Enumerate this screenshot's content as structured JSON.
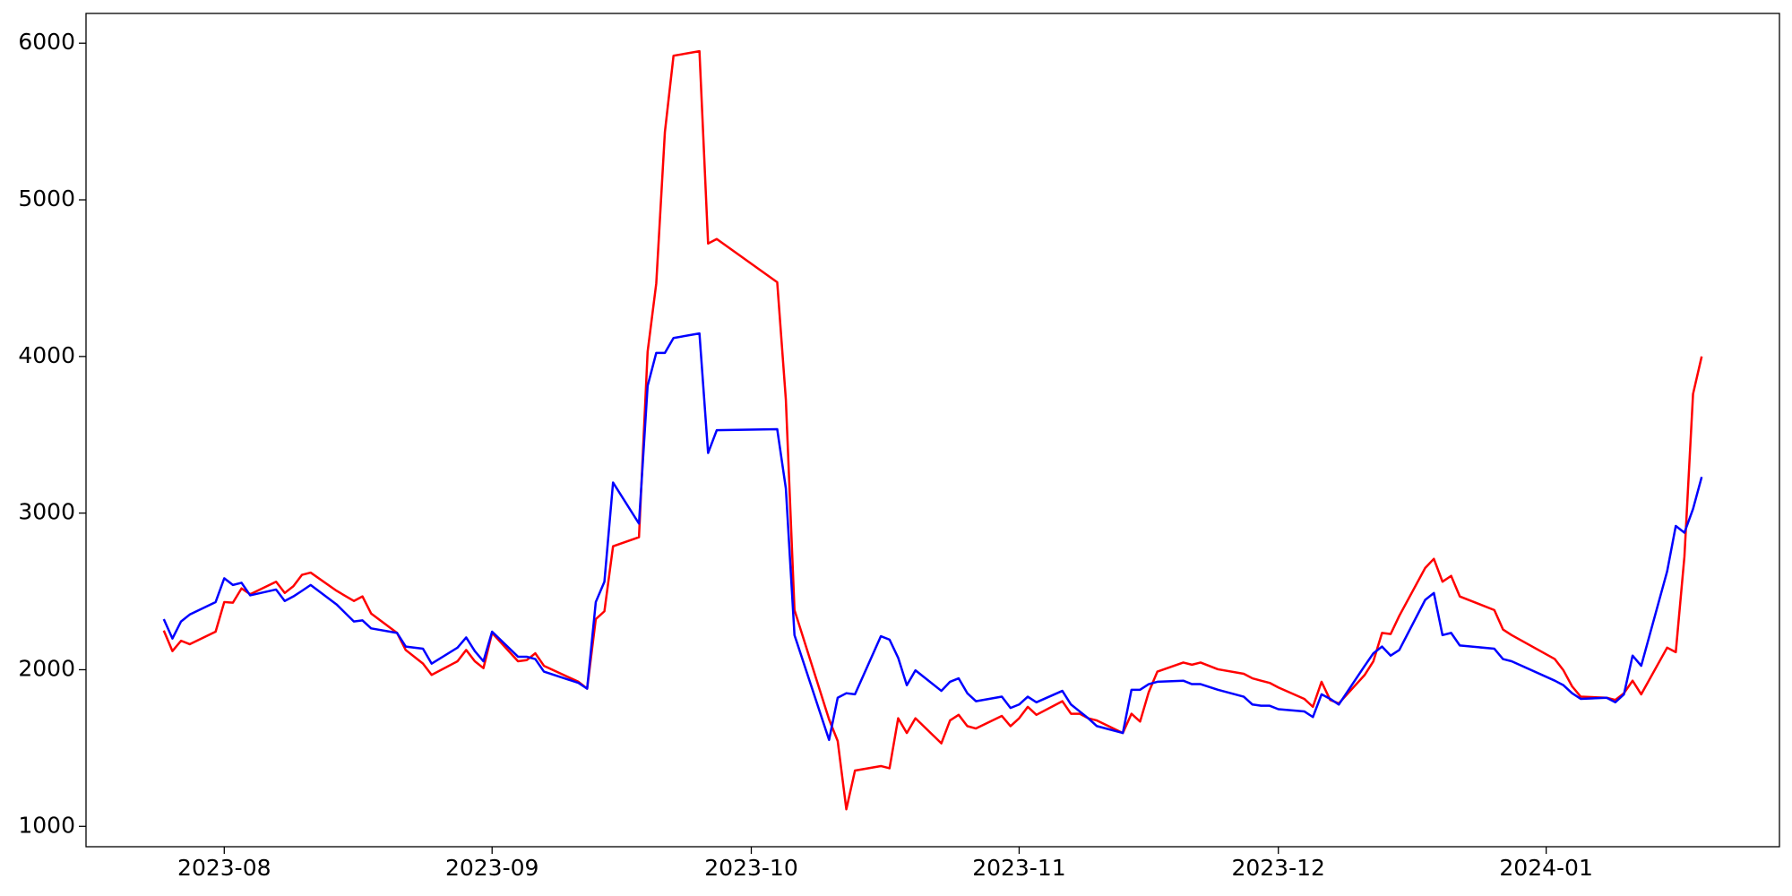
{
  "chart_data": {
    "type": "line",
    "x": [
      "2023-07-25",
      "2023-07-26",
      "2023-07-27",
      "2023-07-28",
      "2023-07-31",
      "2023-08-01",
      "2023-08-02",
      "2023-08-03",
      "2023-08-04",
      "2023-08-07",
      "2023-08-08",
      "2023-08-09",
      "2023-08-10",
      "2023-08-11",
      "2023-08-14",
      "2023-08-16",
      "2023-08-17",
      "2023-08-18",
      "2023-08-21",
      "2023-08-22",
      "2023-08-24",
      "2023-08-25",
      "2023-08-28",
      "2023-08-29",
      "2023-08-30",
      "2023-08-31",
      "2023-09-01",
      "2023-09-04",
      "2023-09-05",
      "2023-09-06",
      "2023-09-07",
      "2023-09-11",
      "2023-09-12",
      "2023-09-13",
      "2023-09-14",
      "2023-09-15",
      "2023-09-18",
      "2023-09-19",
      "2023-09-20",
      "2023-09-21",
      "2023-09-22",
      "2023-09-25",
      "2023-09-26",
      "2023-09-27",
      "2023-10-04",
      "2023-10-05",
      "2023-10-06",
      "2023-10-10",
      "2023-10-11",
      "2023-10-12",
      "2023-10-13",
      "2023-10-16",
      "2023-10-17",
      "2023-10-18",
      "2023-10-19",
      "2023-10-20",
      "2023-10-23",
      "2023-10-24",
      "2023-10-25",
      "2023-10-26",
      "2023-10-27",
      "2023-10-30",
      "2023-10-31",
      "2023-11-01",
      "2023-11-02",
      "2023-11-03",
      "2023-11-06",
      "2023-11-07",
      "2023-11-08",
      "2023-11-09",
      "2023-11-10",
      "2023-11-13",
      "2023-11-14",
      "2023-11-15",
      "2023-11-16",
      "2023-11-17",
      "2023-11-20",
      "2023-11-21",
      "2023-11-22",
      "2023-11-24",
      "2023-11-27",
      "2023-11-28",
      "2023-11-29",
      "2023-11-30",
      "2023-12-01",
      "2023-12-04",
      "2023-12-05",
      "2023-12-06",
      "2023-12-07",
      "2023-12-08",
      "2023-12-11",
      "2023-12-12",
      "2023-12-13",
      "2023-12-14",
      "2023-12-15",
      "2023-12-18",
      "2023-12-19",
      "2023-12-20",
      "2023-12-21",
      "2023-12-22",
      "2023-12-26",
      "2023-12-27",
      "2023-12-28",
      "2024-01-02",
      "2024-01-03",
      "2024-01-04",
      "2024-01-05",
      "2024-01-08",
      "2024-01-09",
      "2024-01-10",
      "2024-01-11",
      "2024-01-12",
      "2024-01-15",
      "2024-01-16",
      "2024-01-17",
      "2024-01-18",
      "2024-01-19"
    ],
    "series": [
      {
        "color": "#ff0000",
        "values": [
          2250,
          2119,
          2185,
          2163,
          2243,
          2432,
          2428,
          2519,
          2482,
          2562,
          2490,
          2533,
          2606,
          2620,
          2504,
          2439,
          2468,
          2359,
          2235,
          2126,
          2039,
          1967,
          2054,
          2126,
          2054,
          2010,
          2235,
          2054,
          2061,
          2105,
          2025,
          1923,
          1879,
          2323,
          2373,
          2788,
          2846,
          4030,
          4466,
          5433,
          5920,
          5949,
          4721,
          4750,
          4474,
          3725,
          2381,
          1683,
          1545,
          1109,
          1356,
          1385,
          1371,
          1690,
          1596,
          1690,
          1530,
          1676,
          1712,
          1640,
          1625,
          1705,
          1640,
          1690,
          1763,
          1712,
          1799,
          1719,
          1719,
          1690,
          1676,
          1596,
          1719,
          1669,
          1857,
          1988,
          2046,
          2032,
          2046,
          2003,
          1974,
          1945,
          1930,
          1916,
          1887,
          1814,
          1763,
          1923,
          1807,
          1785,
          1967,
          2054,
          2235,
          2228,
          2344,
          2650,
          2708,
          2562,
          2599,
          2468,
          2381,
          2257,
          2221,
          2068,
          1996,
          1894,
          1828,
          1821,
          1807,
          1850,
          1930,
          1843,
          2141,
          2112,
          2722,
          3761,
          4000
        ]
      },
      {
        "color": "#0000ff",
        "values": [
          2323,
          2199,
          2308,
          2352,
          2432,
          2584,
          2541,
          2555,
          2475,
          2512,
          2439,
          2468,
          2504,
          2541,
          2417,
          2308,
          2315,
          2264,
          2235,
          2148,
          2134,
          2039,
          2141,
          2206,
          2119,
          2054,
          2243,
          2083,
          2083,
          2068,
          1988,
          1916,
          1879,
          2432,
          2562,
          3195,
          2933,
          3812,
          4023,
          4023,
          4118,
          4147,
          3384,
          3529,
          3536,
          3158,
          2221,
          1552,
          1821,
          1850,
          1843,
          2214,
          2192,
          2076,
          1901,
          1996,
          1865,
          1923,
          1945,
          1850,
          1799,
          1828,
          1756,
          1778,
          1828,
          1792,
          1865,
          1778,
          1734,
          1690,
          1640,
          1596,
          1872,
          1872,
          1908,
          1923,
          1930,
          1908,
          1908,
          1872,
          1828,
          1778,
          1770,
          1770,
          1748,
          1734,
          1698,
          1843,
          1814,
          1778,
          2025,
          2105,
          2148,
          2090,
          2126,
          2446,
          2490,
          2221,
          2235,
          2155,
          2134,
          2068,
          2054,
          1930,
          1901,
          1850,
          1814,
          1821,
          1792,
          1843,
          2090,
          2025,
          2628,
          2918,
          2875,
          3027,
          3231
        ]
      }
    ],
    "xlim": [
      "2023-07-16",
      "2024-01-28"
    ],
    "xticks": [
      {
        "value": "2023-08-01",
        "label": "2023-08"
      },
      {
        "value": "2023-09-01",
        "label": "2023-09"
      },
      {
        "value": "2023-10-01",
        "label": "2023-10"
      },
      {
        "value": "2023-11-01",
        "label": "2023-11"
      },
      {
        "value": "2023-12-01",
        "label": "2023-12"
      },
      {
        "value": "2024-01-01",
        "label": "2024-01"
      }
    ],
    "ylim": [
      870,
      6190
    ],
    "yticks": [
      1000,
      2000,
      3000,
      4000,
      5000,
      6000
    ],
    "grid": false
  }
}
